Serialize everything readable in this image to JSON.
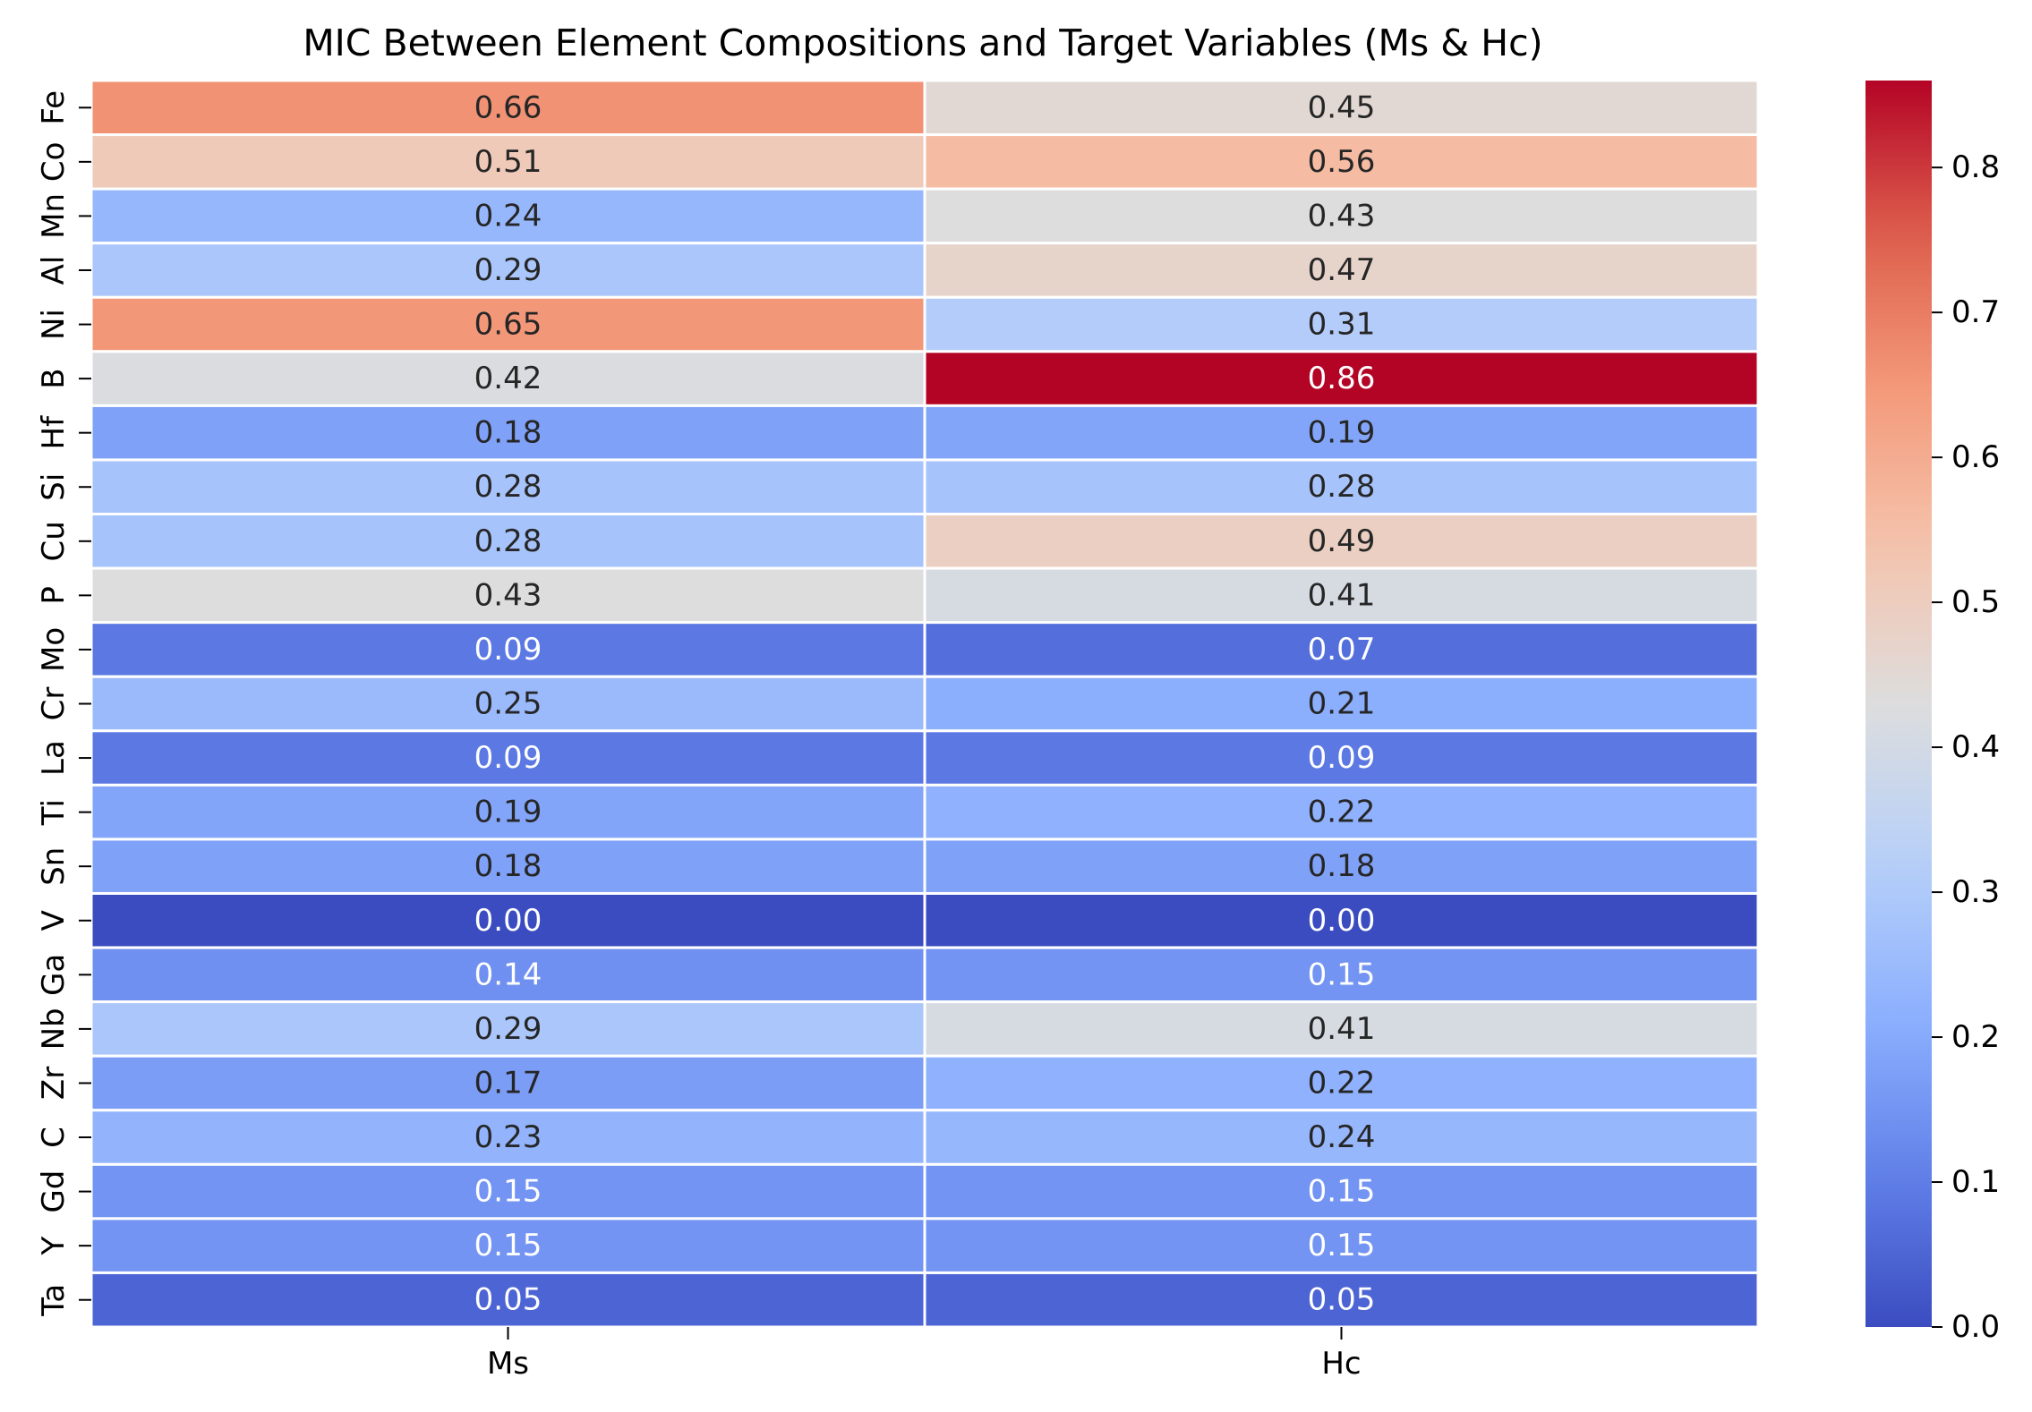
{
  "chart_data": {
    "type": "heatmap",
    "title": "MIC Between Element Compositions and Target Variables (Ms & Hc)",
    "xlabel": "",
    "ylabel": "",
    "columns": [
      "Ms",
      "Hc"
    ],
    "rows": [
      "Fe",
      "Co",
      "Mn",
      "Al",
      "Ni",
      "B",
      "Hf",
      "Si",
      "Cu",
      "P",
      "Mo",
      "Cr",
      "La",
      "Ti",
      "Sn",
      "V",
      "Ga",
      "Nb",
      "Zr",
      "C",
      "Gd",
      "Y",
      "Ta"
    ],
    "values": [
      [
        0.66,
        0.45
      ],
      [
        0.51,
        0.56
      ],
      [
        0.24,
        0.43
      ],
      [
        0.29,
        0.47
      ],
      [
        0.65,
        0.31
      ],
      [
        0.42,
        0.86
      ],
      [
        0.18,
        0.19
      ],
      [
        0.28,
        0.28
      ],
      [
        0.28,
        0.49
      ],
      [
        0.43,
        0.41
      ],
      [
        0.09,
        0.07
      ],
      [
        0.25,
        0.21
      ],
      [
        0.09,
        0.09
      ],
      [
        0.19,
        0.22
      ],
      [
        0.18,
        0.18
      ],
      [
        0.0,
        0.0
      ],
      [
        0.14,
        0.15
      ],
      [
        0.29,
        0.41
      ],
      [
        0.17,
        0.22
      ],
      [
        0.23,
        0.24
      ],
      [
        0.15,
        0.15
      ],
      [
        0.15,
        0.15
      ],
      [
        0.05,
        0.05
      ]
    ],
    "colormap": "coolwarm",
    "vmin": 0.0,
    "vmax": 0.86,
    "colorbar_ticks": [
      0.0,
      0.1,
      0.2,
      0.3,
      0.4,
      0.5,
      0.6,
      0.7,
      0.8
    ],
    "value_format": "2 decimals",
    "cell_separator_color": "#ffffff"
  }
}
